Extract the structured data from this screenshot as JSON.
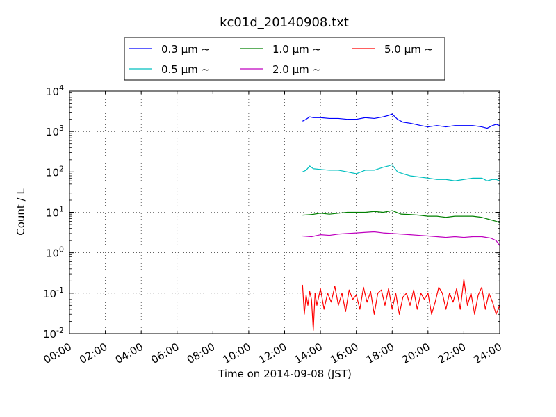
{
  "chart_data": {
    "type": "line",
    "title": "kc01d_20140908.txt",
    "xlabel": "Time on 2014-09-08 (JST)",
    "ylabel": "Count / L",
    "xscale": "linear",
    "yscale": "log",
    "xlim": [
      0,
      24
    ],
    "ylim": [
      0.01,
      10000
    ],
    "grid": true,
    "legend_position": "top-center",
    "x_ticks": [
      0,
      2,
      4,
      6,
      8,
      10,
      12,
      14,
      16,
      18,
      20,
      22,
      24
    ],
    "x_tick_labels": [
      "00:00",
      "02:00",
      "04:00",
      "06:00",
      "08:00",
      "10:00",
      "12:00",
      "14:00",
      "16:00",
      "18:00",
      "20:00",
      "22:00",
      "24:00"
    ],
    "y_ticks": [
      0.01,
      0.1,
      1,
      10,
      100,
      1000,
      10000
    ],
    "y_tick_labels": [
      {
        "base": "10",
        "exp": "-2"
      },
      {
        "base": "10",
        "exp": "-1"
      },
      {
        "base": "10",
        "exp": "0"
      },
      {
        "base": "10",
        "exp": "1"
      },
      {
        "base": "10",
        "exp": "2"
      },
      {
        "base": "10",
        "exp": "3"
      },
      {
        "base": "10",
        "exp": "4"
      }
    ],
    "series": [
      {
        "name": "0.3 μm ~",
        "color": "#0000ff",
        "x": [
          13.0,
          13.2,
          13.4,
          13.6,
          14.0,
          14.5,
          15.0,
          15.5,
          16.0,
          16.5,
          17.0,
          17.5,
          17.8,
          18.0,
          18.3,
          18.6,
          19.0,
          19.3,
          19.6,
          20.0,
          20.5,
          21.0,
          21.5,
          22.0,
          22.5,
          23.0,
          23.3,
          23.6,
          23.8,
          24.0
        ],
        "y": [
          1800,
          2000,
          2300,
          2200,
          2200,
          2100,
          2100,
          2000,
          2000,
          2200,
          2100,
          2300,
          2500,
          2700,
          2000,
          1700,
          1600,
          1500,
          1400,
          1300,
          1400,
          1300,
          1400,
          1400,
          1400,
          1300,
          1200,
          1400,
          1500,
          1400
        ]
      },
      {
        "name": "0.5 μm ~",
        "color": "#00bfbf",
        "x": [
          13.0,
          13.2,
          13.4,
          13.6,
          14.0,
          14.5,
          15.0,
          15.5,
          16.0,
          16.5,
          17.0,
          17.5,
          17.8,
          18.0,
          18.3,
          18.6,
          19.0,
          19.5,
          20.0,
          20.5,
          21.0,
          21.5,
          22.0,
          22.5,
          23.0,
          23.3,
          23.6,
          23.8,
          24.0
        ],
        "y": [
          100,
          110,
          140,
          120,
          115,
          110,
          110,
          100,
          90,
          110,
          110,
          130,
          140,
          150,
          100,
          90,
          80,
          75,
          70,
          65,
          65,
          60,
          65,
          70,
          70,
          60,
          65,
          65,
          60
        ]
      },
      {
        "name": "1.0 μm ~",
        "color": "#008000",
        "x": [
          13.0,
          13.5,
          14.0,
          14.5,
          15.0,
          15.5,
          16.0,
          16.5,
          17.0,
          17.5,
          18.0,
          18.5,
          19.0,
          19.5,
          20.0,
          20.5,
          21.0,
          21.5,
          22.0,
          22.5,
          23.0,
          23.5,
          23.8,
          24.0
        ],
        "y": [
          8.5,
          8.8,
          9.5,
          9.0,
          9.5,
          10,
          10,
          10,
          10.5,
          10,
          11,
          9,
          8.8,
          8.5,
          8.0,
          8.0,
          7.5,
          8.0,
          8.0,
          8.0,
          7.5,
          6.5,
          6.0,
          5.5
        ]
      },
      {
        "name": "2.0 μm ~",
        "color": "#bf00bf",
        "x": [
          13.0,
          13.5,
          14.0,
          14.5,
          15.0,
          15.5,
          16.0,
          16.5,
          17.0,
          17.5,
          18.0,
          18.5,
          19.0,
          19.5,
          20.0,
          20.5,
          21.0,
          21.5,
          22.0,
          22.5,
          23.0,
          23.5,
          23.8,
          24.0
        ],
        "y": [
          2.6,
          2.5,
          2.8,
          2.7,
          2.9,
          3.0,
          3.1,
          3.2,
          3.3,
          3.1,
          3.0,
          2.9,
          2.8,
          2.7,
          2.6,
          2.5,
          2.4,
          2.5,
          2.4,
          2.5,
          2.5,
          2.3,
          2.0,
          1.5
        ]
      },
      {
        "name": "5.0 μm ~",
        "color": "#ff0000",
        "x": [
          13.0,
          13.1,
          13.2,
          13.3,
          13.4,
          13.5,
          13.6,
          13.7,
          13.8,
          13.9,
          14.0,
          14.2,
          14.4,
          14.6,
          14.8,
          15.0,
          15.2,
          15.4,
          15.6,
          15.8,
          16.0,
          16.2,
          16.4,
          16.6,
          16.8,
          17.0,
          17.2,
          17.4,
          17.6,
          17.8,
          18.0,
          18.2,
          18.4,
          18.6,
          18.8,
          19.0,
          19.2,
          19.4,
          19.6,
          19.8,
          20.0,
          20.2,
          20.4,
          20.6,
          20.8,
          21.0,
          21.2,
          21.4,
          21.6,
          21.8,
          22.0,
          22.2,
          22.4,
          22.6,
          22.8,
          23.0,
          23.2,
          23.4,
          23.6,
          23.8,
          24.0
        ],
        "y": [
          0.16,
          0.03,
          0.09,
          0.05,
          0.11,
          0.07,
          0.012,
          0.1,
          0.05,
          0.08,
          0.13,
          0.04,
          0.1,
          0.06,
          0.15,
          0.05,
          0.1,
          0.035,
          0.12,
          0.07,
          0.09,
          0.04,
          0.14,
          0.06,
          0.11,
          0.03,
          0.1,
          0.12,
          0.05,
          0.13,
          0.04,
          0.1,
          0.03,
          0.08,
          0.1,
          0.05,
          0.12,
          0.04,
          0.1,
          0.07,
          0.1,
          0.03,
          0.06,
          0.14,
          0.1,
          0.04,
          0.1,
          0.06,
          0.13,
          0.04,
          0.22,
          0.05,
          0.1,
          0.03,
          0.09,
          0.14,
          0.04,
          0.1,
          0.06,
          0.03,
          0.05
        ]
      }
    ]
  }
}
